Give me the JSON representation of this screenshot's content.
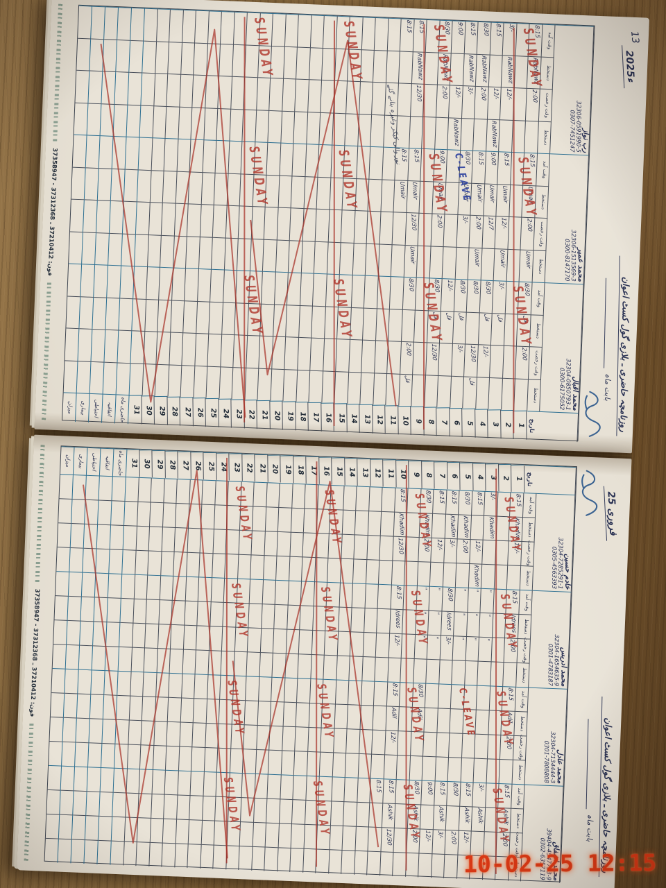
{
  "photo": {
    "timestamp": "10-02-25 12:15"
  },
  "colors": {
    "ink": "#2b3252",
    "red_ink": "#b13a2f",
    "blue_ink": "#2b3f9e",
    "grid_line": "#4a505b",
    "heavy_rule": "#2e7092",
    "paper": "#e9e3d7",
    "wood": "#8a6a3e",
    "timestamp": "#e23a16"
  },
  "register": {
    "sunday_label": "SUNDAY",
    "subtitle": "بابت ماہ",
    "headers": {
      "date": "تاریخ",
      "time_in": "وقت آمد",
      "sign": "دستخط",
      "time_out": "وقت رخصت",
      "sign2": "دستخط"
    },
    "summary_rows": [
      "حاضری ماہ",
      "اتفاقیہ",
      "احتیاطی",
      "بیماری",
      "میزان"
    ],
    "days_in_month": 31,
    "sundays": [
      2,
      9,
      16,
      23
    ],
    "footer_phone": "فون: 37210412 ـ 37312368 - 37358947",
    "pages": [
      {
        "side": "left",
        "page_no": "13",
        "title": "روزنامچہ حاضری ـ بلازی گول کسٹ اعوان",
        "month_label": "2025ء",
        "date_col": "right",
        "persons": [
          {
            "name": "رب نواز",
            "cnic": "32306-0591990-5",
            "phone": "0307-7451247",
            "rows": {
              "1": [
                "8:15",
                "RabNawz",
                "2:00",
                ""
              ],
              "3": [
                "3/-",
                "RabNawz",
                "12/-",
                ""
              ],
              "4": [
                "8:15",
                "",
                "12/-",
                "RabNawz"
              ],
              "5": [
                "8/30",
                "RabNawz",
                "2:00",
                ""
              ],
              "6": [
                "8:15",
                "RabNawz",
                "3/-",
                ""
              ],
              "7": [
                "9:00",
                "",
                "12/-",
                "RabNawz"
              ],
              "8": [
                "8/30",
                "RabNawz",
                "2:00",
                ""
              ],
              "10": [
                "8:15",
                "RabNawz",
                "12/30",
                ""
              ],
              "11": [
                "8:15",
                "",
                "",
                ""
              ]
            },
            "specials": []
          },
          {
            "name": "محمد عمیر",
            "cnic": "32306-1513569-3",
            "phone": "0300-8147170",
            "rows": {
              "1": [
                "8:15",
                "Umair",
                "2:00",
                "Umair"
              ],
              "3": [
                "8:15",
                "Umair",
                "12/-",
                "Umair"
              ],
              "4": [
                "9:00",
                "Umair",
                "12/7",
                ""
              ],
              "5": [
                "8:15",
                "Umair",
                "2:00",
                "Umair"
              ],
              "6": [
                "8/30",
                "Umair",
                "3/-",
                ""
              ],
              "8": [
                "9:00",
                "Umair",
                "2:00",
                ""
              ],
              "10": [
                "8:15",
                "Umair",
                "12/30",
                "Umair"
              ],
              "11": [
                "8:15",
                "Umair",
                "",
                ""
              ]
            },
            "specials": [
              {
                "type": "cleave",
                "day": 7,
                "color": "#2b3f9e",
                "label": "C-LEAVE"
              },
              {
                "type": "note",
                "day": 12,
                "text": "نور والی کیکر وغیرہ بنانے گئے"
              }
            ]
          },
          {
            "name": "محمد اقبال",
            "cnic": "32304-0850793-1",
            "phone": "0300-6175052",
            "rows": {
              "1": [
                "8/30",
                "قل",
                "2:00",
                ""
              ],
              "3": [
                "3/-",
                "قل",
                "",
                ""
              ],
              "4": [
                "8/30",
                "قل",
                "12/-",
                ""
              ],
              "5": [
                "8/30",
                "",
                "12/30",
                "قل"
              ],
              "6": [
                "8/30",
                "قل",
                "3/-",
                ""
              ],
              "7": [
                "12/-",
                "قل",
                "",
                ""
              ],
              "8": [
                "8/30",
                "قل",
                "12/30",
                ""
              ],
              "10": [
                "8/30",
                "",
                "2:00",
                "قل"
              ]
            },
            "specials": []
          }
        ]
      },
      {
        "side": "right",
        "page_no": "",
        "title": "روزنامچہ حاضری ـ بلازی گول کسٹ اعوان",
        "month_label": "فروری 25",
        "date_col": "left",
        "persons": [
          {
            "name": "خادم حسین",
            "cnic": "32304-7285291-1",
            "phone": "0305-4563393",
            "rows": {
              "1": [
                "8:15",
                "Khadim",
                "12/-",
                ""
              ],
              "3": [
                "3/-",
                "Khadim",
                "",
                ""
              ],
              "4": [
                "8:15",
                "",
                "12/-",
                "Khadim"
              ],
              "5": [
                "8/30",
                "Khadim",
                "2:00",
                ""
              ],
              "6": [
                "8:15",
                "Khadim",
                "3/-",
                ""
              ],
              "7": [
                "8:15",
                "",
                "12/-",
                ""
              ],
              "8": [
                "8/30",
                "Khadim",
                "2:00",
                ""
              ],
              "10": [
                "8:15",
                "Khadim",
                "12/30",
                ""
              ]
            },
            "specials": []
          },
          {
            "name": "محمد ادریس",
            "cnic": "32304-1654635-9",
            "phone": "0301-4783187",
            "rows": {
              "1": [
                "8:15",
                "Idrees",
                "2:00",
                ""
              ],
              "3": [
                "\"",
                "\"",
                "\"",
                ""
              ],
              "4": [
                "\"",
                "\"",
                "\"",
                ""
              ],
              "5": [
                "\"",
                "\"",
                "\"",
                ""
              ],
              "6": [
                "8/30",
                "Idrees",
                "3/-",
                ""
              ],
              "7": [
                "\"",
                "\"",
                "\"",
                ""
              ],
              "8": [
                "\"",
                "\"",
                "\"",
                ""
              ],
              "10": [
                "8:15",
                "Idrees",
                "12/-",
                ""
              ]
            },
            "specials": []
          },
          {
            "name": "محمد عادل",
            "cnic": "32304-7134444-3",
            "phone": "0301-7808808",
            "rows": {
              "1": [
                "8:15",
                "Adil",
                "2:00",
                ""
              ],
              "8": [
                "8/30",
                "Adil",
                "",
                ""
              ],
              "10": [
                "8:15",
                "Adil",
                "12/-",
                ""
              ]
            },
            "specials": [
              {
                "type": "cleave",
                "day": 5,
                "color": "#b13a2f",
                "label": "C-LEAVE"
              }
            ]
          },
          {
            "name": "محمد اشفاق",
            "cnic": "39404-4547733-9",
            "phone": "0302-6357119",
            "rows": {
              "1": [
                "8:15",
                "Ashik",
                "2:00",
                ""
              ],
              "3": [
                "3/-",
                "Ashik",
                "",
                ""
              ],
              "4": [
                "8:15",
                "Ashik",
                "12/-",
                ""
              ],
              "5": [
                "8/30",
                "",
                "2:00",
                ""
              ],
              "6": [
                "8:15",
                "Ashik",
                "3/-",
                ""
              ],
              "7": [
                "9:00",
                "",
                "12/-",
                ""
              ],
              "8": [
                "8/30",
                "Ashik",
                "2:00",
                ""
              ],
              "10": [
                "8:15",
                "Ashik",
                "12/30",
                ""
              ],
              "11": [
                "8:15",
                "",
                "",
                ""
              ]
            },
            "specials": []
          }
        ]
      }
    ]
  }
}
